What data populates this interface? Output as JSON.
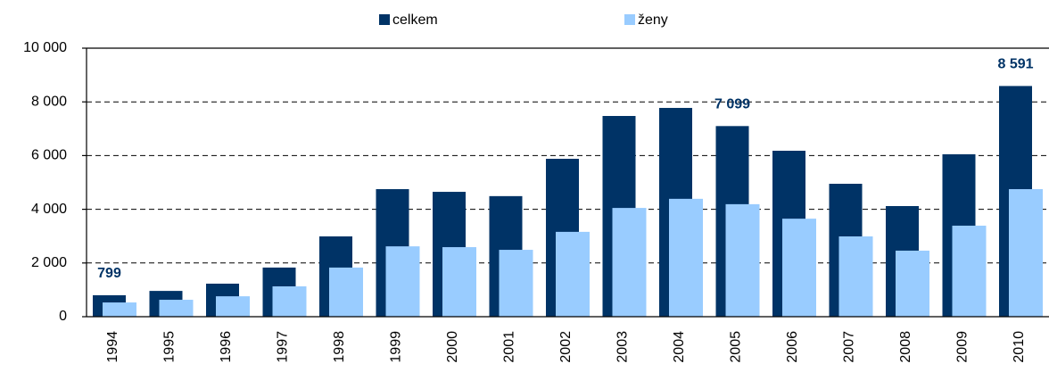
{
  "chart_data": {
    "type": "bar",
    "categories": [
      "1994",
      "1995",
      "1996",
      "1997",
      "1998",
      "1999",
      "2000",
      "2001",
      "2002",
      "2003",
      "2004",
      "2005",
      "2006",
      "2007",
      "2008",
      "2009",
      "2010"
    ],
    "series": [
      {
        "name": "celkem",
        "color": "#003366",
        "values": [
          799,
          960,
          1230,
          1830,
          2990,
          4750,
          4650,
          4490,
          5880,
          7475,
          7775,
          7099,
          6180,
          4950,
          4120,
          6050,
          8591
        ],
        "value_labels": [
          "799",
          null,
          null,
          null,
          null,
          null,
          null,
          null,
          null,
          null,
          null,
          "7 099",
          null,
          null,
          null,
          null,
          "8 591"
        ]
      },
      {
        "name": "ženy",
        "color": "#99ccff",
        "values": [
          530,
          630,
          760,
          1130,
          1830,
          2620,
          2590,
          2490,
          3160,
          4050,
          4390,
          4190,
          3650,
          2990,
          2460,
          3390,
          4750
        ]
      }
    ],
    "ylim": [
      0,
      10000
    ],
    "yticks": [
      0,
      {
        "value": 2000,
        "label": "2 000"
      },
      {
        "value": 4000,
        "label": "4 000"
      },
      {
        "value": 6000,
        "label": "6 000"
      },
      {
        "value": 8000,
        "label": "8 000"
      },
      {
        "value": 10000,
        "label": "10 000"
      }
    ],
    "grid": true,
    "legend": "top"
  }
}
